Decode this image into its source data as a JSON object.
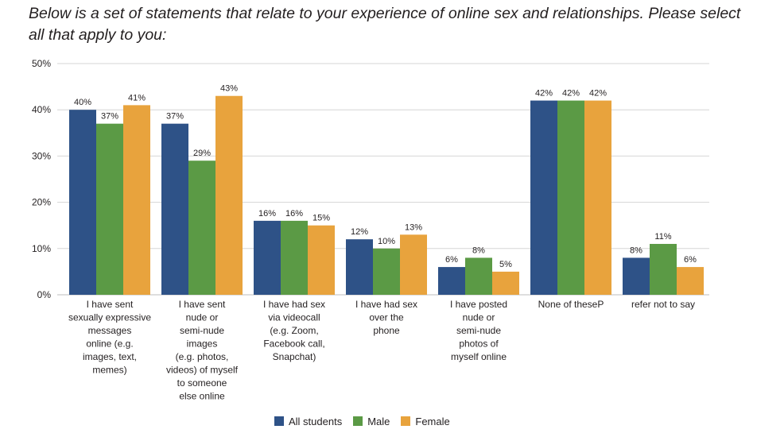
{
  "title": "Below is a set of statements that relate to your experience of online sex and relationships. Please select all that apply to you:",
  "chart_data": {
    "type": "bar",
    "title": "Below is a set of statements that relate to your experience of online sex and relationships. Please select all that apply to you:",
    "xlabel": "",
    "ylabel": "",
    "ylim": [
      0,
      50
    ],
    "yticks": [
      "0%",
      "10%",
      "20%",
      "30%",
      "40%",
      "50%"
    ],
    "grid": true,
    "legend_position": "bottom",
    "categories": [
      [
        "I have sent",
        "sexually expressive",
        "messages",
        "online (e.g.",
        "images, text,",
        "memes)"
      ],
      [
        "I have sent",
        "nude or",
        "semi-nude",
        "images",
        "(e.g. photos,",
        "videos) of myself",
        "to someone",
        "else online"
      ],
      [
        "I have had sex",
        "via videocall",
        "(e.g. Zoom,",
        "Facebook call,",
        "Snapchat)"
      ],
      [
        "I have had sex",
        "over the",
        "phone"
      ],
      [
        "I have posted",
        "nude or",
        "semi-nude",
        "photos of",
        "myself online"
      ],
      [
        "None of theseP"
      ],
      [
        "refer not to say"
      ]
    ],
    "series": [
      {
        "name": "All students",
        "color": "#2e5287",
        "values": [
          40,
          37,
          16,
          12,
          6,
          42,
          8
        ],
        "labels": [
          "40%",
          "37%",
          "16%",
          "12%",
          "6%",
          "42%",
          "8%"
        ]
      },
      {
        "name": "Male",
        "color": "#5b9a45",
        "values": [
          37,
          29,
          16,
          10,
          8,
          42,
          11
        ],
        "labels": [
          "37%",
          "29%",
          "16%",
          "10%",
          "8%",
          "42%",
          "11%"
        ]
      },
      {
        "name": "Female",
        "color": "#e8a33d",
        "values": [
          41,
          43,
          15,
          13,
          5,
          42,
          6
        ],
        "labels": [
          "41%",
          "43%",
          "15%",
          "13%",
          "5%",
          "42%",
          "6%"
        ]
      }
    ]
  },
  "legend": {
    "items": [
      {
        "label": "All students",
        "color": "#2e5287"
      },
      {
        "label": "Male",
        "color": "#5b9a45"
      },
      {
        "label": "Female",
        "color": "#e8a33d"
      }
    ]
  }
}
